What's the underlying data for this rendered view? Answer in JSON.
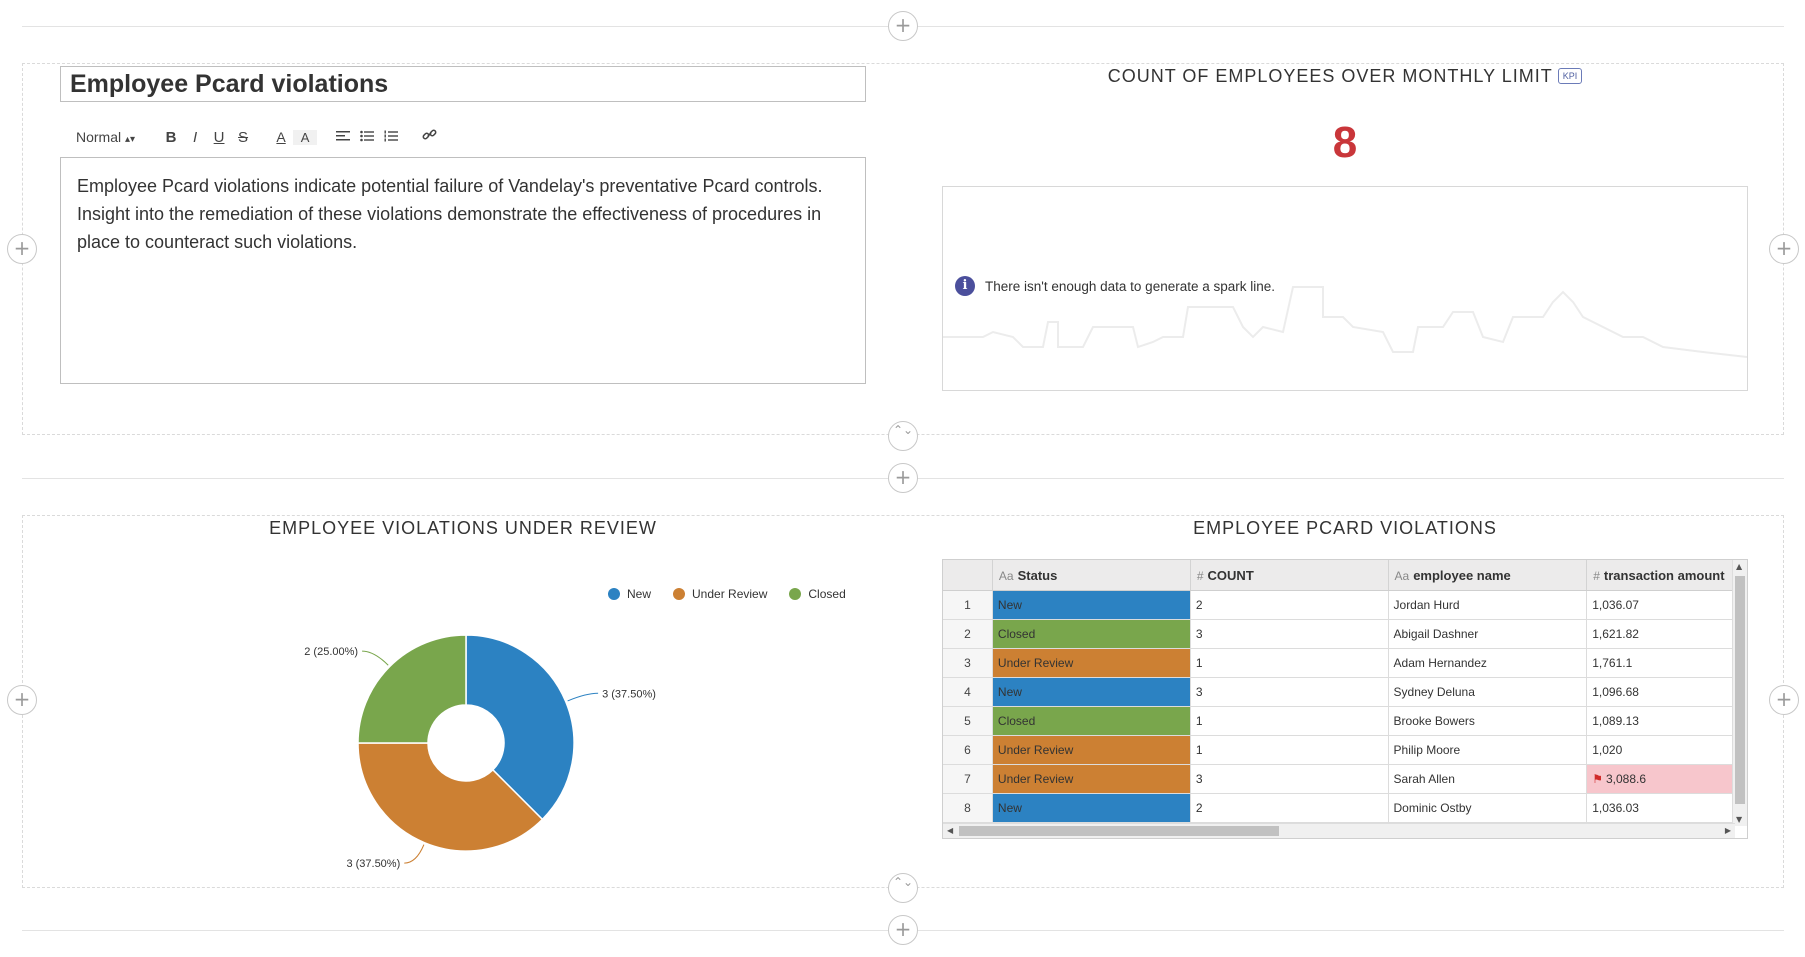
{
  "text_widget": {
    "title": "Employee Pcard violations",
    "toolbar": {
      "format_select": "Normal",
      "bold": "B",
      "italic": "I",
      "underline": "U",
      "strike": "S",
      "font_color": "A",
      "bg_color": "A"
    },
    "body": "Employee Pcard violations indicate potential failure of Vandelay's preventative Pcard controls. Insight into the remediation of these violations demonstrate the effectiveness of procedures in place to counteract such violations."
  },
  "kpi_widget": {
    "title": "COUNT OF EMPLOYEES OVER MONTHLY LIMIT",
    "badge": "KPI",
    "value": "8",
    "value_color": "#c9363a",
    "spark_message": "There isn't enough data to generate a spark line.",
    "info_icon_label": "i"
  },
  "pie_widget": {
    "title": "EMPLOYEE VIOLATIONS UNDER REVIEW"
  },
  "chart_data": {
    "type": "pie",
    "donut": true,
    "legend_position": "top-right",
    "slices": [
      {
        "name": "New",
        "value": 3,
        "label": "3 (37.50%)",
        "color": "#2c82c2"
      },
      {
        "name": "Under Review",
        "value": 3,
        "label": "3 (37.50%)",
        "color": "#cc8033"
      },
      {
        "name": "Closed",
        "value": 2,
        "label": "2 (25.00%)",
        "color": "#79a64c"
      }
    ]
  },
  "table_widget": {
    "title": "EMPLOYEE PCARD VIOLATIONS",
    "columns": [
      {
        "type_icon": "Aa",
        "label": "Status"
      },
      {
        "type_icon": "#",
        "label": "COUNT"
      },
      {
        "type_icon": "Aa",
        "label": "employee name"
      },
      {
        "type_icon": "#",
        "label": "transaction amount"
      }
    ],
    "status_colors": {
      "New": "#2c82c2",
      "Closed": "#79a64c",
      "Under Review": "#cc8033"
    },
    "highlight_color": "#f7c6cc",
    "rows": [
      {
        "index": "1",
        "status": "New",
        "count": "2",
        "employee": "Jordan Hurd",
        "amount": "1,036.07",
        "flagged": false
      },
      {
        "index": "2",
        "status": "Closed",
        "count": "3",
        "employee": "Abigail Dashner",
        "amount": "1,621.82",
        "flagged": false
      },
      {
        "index": "3",
        "status": "Under Review",
        "count": "1",
        "employee": "Adam Hernandez",
        "amount": "1,761.1",
        "flagged": false
      },
      {
        "index": "4",
        "status": "New",
        "count": "3",
        "employee": "Sydney Deluna",
        "amount": "1,096.68",
        "flagged": false
      },
      {
        "index": "5",
        "status": "Closed",
        "count": "1",
        "employee": "Brooke Bowers",
        "amount": "1,089.13",
        "flagged": false
      },
      {
        "index": "6",
        "status": "Under Review",
        "count": "1",
        "employee": "Philip Moore",
        "amount": "1,020",
        "flagged": false
      },
      {
        "index": "7",
        "status": "Under Review",
        "count": "3",
        "employee": "Sarah Allen",
        "amount": "3,088.6",
        "flagged": true
      },
      {
        "index": "8",
        "status": "New",
        "count": "2",
        "employee": "Dominic Ostby",
        "amount": "1,036.03",
        "flagged": false
      }
    ]
  },
  "icons": {
    "add": "+",
    "resize": "⌃⌄",
    "flag": "⚑"
  }
}
